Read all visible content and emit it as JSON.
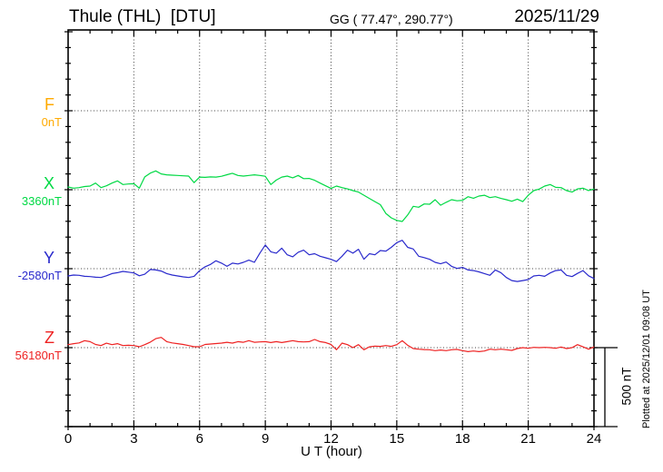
{
  "header": {
    "title": "Thule (THL)  [DTU]",
    "coords": "GG ( 77.47°, 290.77°)",
    "date": "2025/11/29"
  },
  "axis": {
    "xlabel": "U T (hour)",
    "x_tick_labels": [
      "0",
      "3",
      "6",
      "9",
      "12",
      "15",
      "18",
      "21",
      "24"
    ],
    "x_tick_hours": [
      0,
      3,
      6,
      9,
      12,
      15,
      18,
      21,
      24
    ]
  },
  "scale_bar": {
    "label": "500 nT",
    "nT": 500
  },
  "footer_note": "Plotted at 2025/12/01 09:08 UT",
  "chart_data": {
    "type": "line",
    "title": "Thule (THL) [DTU] magnetogram, 2025/11/29",
    "xlabel": "U T (hour)",
    "xlim": [
      0,
      24
    ],
    "grid": "dotted, vertical every 3 h, horizontal at each component baseline",
    "x_step_hours": 0.25,
    "scale_reference_nT_per_division": 500,
    "series": [
      {
        "name": "F",
        "baseline_label": "0nT",
        "baseline_nT": 0,
        "color": "#ffaa00",
        "deviation_nT": []
      },
      {
        "name": "X",
        "baseline_label": "3360nT",
        "baseline_nT": 3360,
        "color": "#00d944",
        "deviation_nT": [
          17,
          10,
          13,
          20,
          23,
          42,
          13,
          25,
          42,
          56,
          33,
          36,
          38,
          10,
          81,
          105,
          119,
          100,
          94,
          92,
          90,
          88,
          86,
          45,
          80,
          78,
          81,
          80,
          85,
          95,
          104,
          90,
          86,
          90,
          94,
          90,
          85,
          33,
          61,
          80,
          86,
          75,
          90,
          70,
          71,
          60,
          42,
          25,
          8,
          23,
          13,
          5,
          -6,
          -15,
          -35,
          -55,
          -75,
          -95,
          -150,
          -178,
          -194,
          -201,
          -160,
          -105,
          -111,
          -90,
          -92,
          -63,
          -98,
          -80,
          -63,
          -70,
          -67,
          -44,
          -54,
          -40,
          -35,
          -50,
          -44,
          -55,
          -63,
          -73,
          -60,
          -75,
          -35,
          -6,
          4,
          23,
          33,
          15,
          13,
          -6,
          -15,
          5,
          10,
          -5,
          4
        ]
      },
      {
        "name": "Y",
        "baseline_label": "-2580nT",
        "baseline_nT": -2580,
        "color": "#2929cc",
        "deviation_nT": [
          -46,
          -40,
          -42,
          -48,
          -50,
          -54,
          -56,
          -45,
          -31,
          -25,
          -17,
          -22,
          -27,
          -45,
          -35,
          -5,
          -8,
          -15,
          -31,
          -40,
          -46,
          -52,
          -56,
          -48,
          -12,
          12,
          27,
          50,
          35,
          15,
          35,
          30,
          40,
          54,
          40,
          98,
          150,
          107,
          98,
          130,
          88,
          75,
          104,
          117,
          88,
          95,
          79,
          69,
          59,
          45,
          79,
          117,
          98,
          123,
          60,
          95,
          88,
          115,
          111,
          135,
          165,
          180,
          135,
          125,
          79,
          70,
          59,
          40,
          31,
          42,
          15,
          2,
          8,
          -8,
          -12,
          -20,
          -31,
          -42,
          -8,
          -25,
          -56,
          -75,
          -81,
          -75,
          -69,
          -46,
          -42,
          -48,
          -27,
          -12,
          -8,
          -42,
          -50,
          -30,
          -12,
          -45,
          -62
        ]
      },
      {
        "name": "Z",
        "baseline_label": "56180nT",
        "baseline_nT": 56180,
        "color": "#ee2222",
        "deviation_nT": [
          19,
          25,
          30,
          44,
          38,
          20,
          13,
          28,
          19,
          25,
          13,
          15,
          13,
          6,
          19,
          35,
          57,
          65,
          38,
          30,
          25,
          20,
          13,
          6,
          6,
          20,
          23,
          26,
          29,
          34,
          29,
          38,
          34,
          44,
          34,
          36,
          38,
          32,
          38,
          32,
          38,
          44,
          38,
          36,
          38,
          52,
          38,
          32,
          20,
          -13,
          29,
          19,
          0,
          19,
          -13,
          5,
          10,
          8,
          13,
          8,
          19,
          44,
          15,
          -6,
          -10,
          -12,
          -13,
          -19,
          -15,
          -19,
          -13,
          -11,
          -19,
          -25,
          -21,
          -25,
          -21,
          -10,
          -13,
          -10,
          -13,
          -17,
          -6,
          0,
          -4,
          2,
          0,
          2,
          0,
          -4,
          4,
          -6,
          0,
          19,
          5,
          -10,
          4
        ]
      }
    ]
  }
}
